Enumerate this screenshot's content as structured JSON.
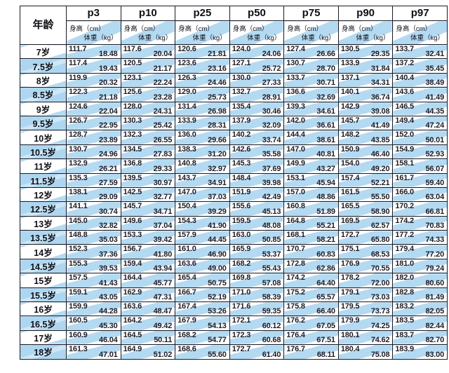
{
  "colors": {
    "stripe_blue": "#b4daf2",
    "border_dark": "#1a1a24",
    "text_dark": "#1c1c27",
    "background": "#ffffff"
  },
  "chart_data": {
    "type": "table",
    "title": "",
    "age_header": "年龄",
    "height_label": "身高（cm）",
    "weight_label": "体重（kg）",
    "percentiles": [
      "p3",
      "p10",
      "p25",
      "p50",
      "p75",
      "p90",
      "p97"
    ],
    "rows": [
      {
        "age": "7岁",
        "values": [
          [
            "111.7",
            "18.48"
          ],
          [
            "117.6",
            "20.04"
          ],
          [
            "120.6",
            "21.81"
          ],
          [
            "124.0",
            "24.06"
          ],
          [
            "127.4",
            "26.66"
          ],
          [
            "130.5",
            "29.35"
          ],
          [
            "133.7",
            "32.41"
          ]
        ]
      },
      {
        "age": "7.5岁",
        "values": [
          [
            "117.4",
            "19.43"
          ],
          [
            "120.5",
            "21.17"
          ],
          [
            "123.6",
            "23.16"
          ],
          [
            "127.1",
            "25.72"
          ],
          [
            "130.7",
            "28.70"
          ],
          [
            "133.9",
            "31.84"
          ],
          [
            "137.2",
            "35.45"
          ]
        ]
      },
      {
        "age": "8岁",
        "values": [
          [
            "119.9",
            "20.32"
          ],
          [
            "123.1",
            "22.24"
          ],
          [
            "126.3",
            "24.46"
          ],
          [
            "130.0",
            "27.33"
          ],
          [
            "133.7",
            "30.71"
          ],
          [
            "137.1",
            "34.31"
          ],
          [
            "140.4",
            "38.49"
          ]
        ]
      },
      {
        "age": "8.5岁",
        "values": [
          [
            "122.3",
            "21.18"
          ],
          [
            "125.6",
            "23.28"
          ],
          [
            "129.0",
            "25.73"
          ],
          [
            "132.7",
            "28.91"
          ],
          [
            "136.6",
            "32.69"
          ],
          [
            "140.1",
            "36.74"
          ],
          [
            "143.6",
            "41.49"
          ]
        ]
      },
      {
        "age": "9岁",
        "values": [
          [
            "124.6",
            "22.04"
          ],
          [
            "128.0",
            "24.31"
          ],
          [
            "131.4",
            "26.98"
          ],
          [
            "135.4",
            "30.46"
          ],
          [
            "139.3",
            "34.61"
          ],
          [
            "142.9",
            "39.08"
          ],
          [
            "146.5",
            "44.35"
          ]
        ]
      },
      {
        "age": "9.5岁",
        "values": [
          [
            "126.7",
            "22.95"
          ],
          [
            "130.3",
            "25.42"
          ],
          [
            "133.9",
            "28.31"
          ],
          [
            "137.9",
            "32.09"
          ],
          [
            "142.0",
            "36.61"
          ],
          [
            "145.7",
            "41.49"
          ],
          [
            "149.4",
            "47.24"
          ]
        ]
      },
      {
        "age": "10岁",
        "values": [
          [
            "128.7",
            "23.89"
          ],
          [
            "132.3",
            "26.55"
          ],
          [
            "136.0",
            "29.66"
          ],
          [
            "140.2",
            "33.74"
          ],
          [
            "144.4",
            "38.61"
          ],
          [
            "148.2",
            "43.85"
          ],
          [
            "152.0",
            "50.01"
          ]
        ]
      },
      {
        "age": "10.5岁",
        "values": [
          [
            "130.7",
            "24.96"
          ],
          [
            "134.5",
            "27.83"
          ],
          [
            "138.3",
            "31.20"
          ],
          [
            "142.6",
            "35.58"
          ],
          [
            "147.0",
            "40.81"
          ],
          [
            "150.9",
            "46.40"
          ],
          [
            "154.9",
            "52.93"
          ]
        ]
      },
      {
        "age": "11岁",
        "values": [
          [
            "132.9",
            "26.21"
          ],
          [
            "136.8",
            "29.33"
          ],
          [
            "140.8",
            "32.97"
          ],
          [
            "145.3",
            "37.69"
          ],
          [
            "149.9",
            "43.27"
          ],
          [
            "154.0",
            "49.20"
          ],
          [
            "158.1",
            "56.07"
          ]
        ]
      },
      {
        "age": "11.5岁",
        "values": [
          [
            "135.3",
            "27.59"
          ],
          [
            "139.5",
            "30.97"
          ],
          [
            "143.7",
            "34.91"
          ],
          [
            "148.4",
            "39.98"
          ],
          [
            "153.1",
            "45.94"
          ],
          [
            "157.4",
            "52.21"
          ],
          [
            "161.7",
            "59.40"
          ]
        ]
      },
      {
        "age": "12岁",
        "values": [
          [
            "138.1",
            "29.09"
          ],
          [
            "142.5",
            "32.77"
          ],
          [
            "147.0",
            "37.03"
          ],
          [
            "151.9",
            "42.49"
          ],
          [
            "157.0",
            "48.86"
          ],
          [
            "161.5",
            "55.50"
          ],
          [
            "166.0",
            "63.04"
          ]
        ]
      },
      {
        "age": "12.5岁",
        "values": [
          [
            "141.1",
            "30.74"
          ],
          [
            "145.7",
            "34.71"
          ],
          [
            "150.4",
            "39.29"
          ],
          [
            "155.6",
            "45.13"
          ],
          [
            "160.8",
            "51.89"
          ],
          [
            "165.5",
            "58.90"
          ],
          [
            "170.2",
            "66.81"
          ]
        ]
      },
      {
        "age": "13岁",
        "values": [
          [
            "145.0",
            "32.82"
          ],
          [
            "149.6",
            "37.04"
          ],
          [
            "154.3",
            "41.90"
          ],
          [
            "159.5",
            "48.08"
          ],
          [
            "164.8",
            "55.21"
          ],
          [
            "169.5",
            "62.57"
          ],
          [
            "174.2",
            "70.83"
          ]
        ]
      },
      {
        "age": "13.5岁",
        "values": [
          [
            "148.8",
            "35.03"
          ],
          [
            "153.3",
            "39.42"
          ],
          [
            "157.9",
            "44.45"
          ],
          [
            "163.0",
            "50.85"
          ],
          [
            "168.1",
            "58.21"
          ],
          [
            "172.7",
            "65.80"
          ],
          [
            "177.2",
            "74.33"
          ]
        ]
      },
      {
        "age": "14岁",
        "values": [
          [
            "152.3",
            "37.36"
          ],
          [
            "156.7",
            "41.80"
          ],
          [
            "161.0",
            "46.90"
          ],
          [
            "165.9",
            "53.37"
          ],
          [
            "170.7",
            "60.83"
          ],
          [
            "175.1",
            "68.53"
          ],
          [
            "179.4",
            "77.20"
          ]
        ]
      },
      {
        "age": "14.5岁",
        "values": [
          [
            "155.3",
            "39.53"
          ],
          [
            "159.4",
            "43.94"
          ],
          [
            "163.6",
            "49.00"
          ],
          [
            "168.2",
            "55.43"
          ],
          [
            "172.8",
            "62.86"
          ],
          [
            "176.9",
            "70.55"
          ],
          [
            "181.0",
            "79.24"
          ]
        ]
      },
      {
        "age": "15岁",
        "values": [
          [
            "157.5",
            "41.43"
          ],
          [
            "164.4",
            "45.77"
          ],
          [
            "165.4",
            "50.75"
          ],
          [
            "169.8",
            "57.08"
          ],
          [
            "174.2",
            "64.40"
          ],
          [
            "178.2",
            "72.00"
          ],
          [
            "182.0",
            "80.60"
          ]
        ]
      },
      {
        "age": "15.5岁",
        "values": [
          [
            "159.1",
            "43.05"
          ],
          [
            "162.9",
            "47.31"
          ],
          [
            "166.7",
            "52.19"
          ],
          [
            "171.0",
            "58.39"
          ],
          [
            "175.2",
            "65.57"
          ],
          [
            "179.1",
            "73.03"
          ],
          [
            "182.8",
            "81.49"
          ]
        ]
      },
      {
        "age": "16岁",
        "values": [
          [
            "159.9",
            "44.28"
          ],
          [
            "163.6",
            "48.47"
          ],
          [
            "167.4",
            "53.26"
          ],
          [
            "171.6",
            "59.35"
          ],
          [
            "175.8",
            "66.40"
          ],
          [
            "179.5",
            "73.73"
          ],
          [
            "183.2",
            "82.05"
          ]
        ]
      },
      {
        "age": "16.5岁",
        "values": [
          [
            "160.5",
            "45.30"
          ],
          [
            "164.2",
            "49.42"
          ],
          [
            "167.9",
            "54.13"
          ],
          [
            "172.1",
            "60.12"
          ],
          [
            "176.2",
            "67.05"
          ],
          [
            "179.9",
            "74.25"
          ],
          [
            "183.5",
            "82.44"
          ]
        ]
      },
      {
        "age": "17岁",
        "values": [
          [
            "160.9",
            "46.04"
          ],
          [
            "164.5",
            "50.11"
          ],
          [
            "168.2",
            "54.77"
          ],
          [
            "172.3",
            "60.68"
          ],
          [
            "176.4",
            "67.51"
          ],
          [
            "180.1",
            "74.62"
          ],
          [
            "183.7",
            "82.70"
          ]
        ]
      },
      {
        "age": "18岁",
        "values": [
          [
            "161.3",
            "47.01"
          ],
          [
            "164.9",
            "51.02"
          ],
          [
            "168.6",
            "55.60"
          ],
          [
            "172.7",
            "61.40"
          ],
          [
            "176.7",
            "68.11"
          ],
          [
            "180.4",
            "75.08"
          ],
          [
            "183.9",
            "83.00"
          ]
        ]
      }
    ]
  }
}
